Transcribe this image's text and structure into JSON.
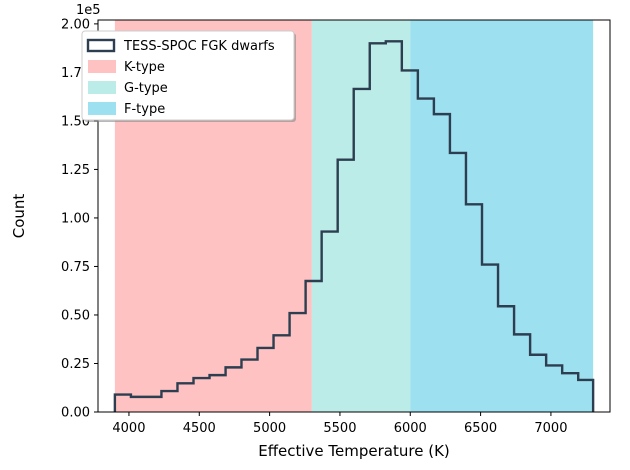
{
  "chart_data": {
    "type": "histogram",
    "title": "",
    "xlabel": "Effective Temperature (K)",
    "ylabel": "Count",
    "y_offset_label": "1e5",
    "xlim": [
      3780,
      7420
    ],
    "ylim": [
      0,
      2.02
    ],
    "y_scale": 100000,
    "xticks": [
      4000,
      4500,
      5000,
      5500,
      6000,
      6500,
      7000
    ],
    "yticks": [
      0.0,
      0.25,
      0.5,
      0.75,
      1.0,
      1.25,
      1.5,
      1.75,
      2.0
    ],
    "xtick_labels": [
      "4000",
      "4500",
      "5000",
      "5500",
      "6000",
      "6500",
      "7000"
    ],
    "ytick_labels": [
      "0.00",
      "0.25",
      "0.50",
      "0.75",
      "1.00",
      "1.25",
      "1.50",
      "1.75",
      "2.00"
    ],
    "regions": [
      {
        "name": "K-type",
        "x0": 3900,
        "x1": 5300,
        "color": "#ff9999",
        "opacity": 0.6
      },
      {
        "name": "G-type",
        "x0": 5300,
        "x1": 6000,
        "color": "#8fdfd8",
        "opacity": 0.6
      },
      {
        "name": "F-type",
        "x0": 6000,
        "x1": 7300,
        "color": "#5ccbe6",
        "opacity": 0.6
      }
    ],
    "series": [
      {
        "name": "TESS-SPOC FGK dwarfs",
        "color": "#2c3e50",
        "bin_edges": [
          3900,
          4014,
          4231,
          4345,
          4459,
          4573,
          4687,
          4800,
          4914,
          5028,
          5142,
          5256,
          5370,
          5484,
          5598,
          5712,
          5826,
          5940,
          6054,
          6168,
          6282,
          6396,
          6510,
          6624,
          6738,
          6852,
          6966,
          7080,
          7194,
          7300
        ],
        "values": [
          0.09,
          0.078,
          0.108,
          0.148,
          0.175,
          0.19,
          0.23,
          0.27,
          0.33,
          0.395,
          0.51,
          0.675,
          0.93,
          1.3,
          1.665,
          1.9,
          1.91,
          1.76,
          1.615,
          1.535,
          1.335,
          1.07,
          0.76,
          0.545,
          0.4,
          0.295,
          0.24,
          0.2,
          0.165
        ]
      }
    ],
    "legend": {
      "placement": "top-left",
      "entries": [
        {
          "label": "TESS-SPOC FGK dwarfs",
          "style": "outline",
          "color": "#2c3e50"
        },
        {
          "label": "K-type",
          "style": "fill",
          "color": "#ff9999"
        },
        {
          "label": "G-type",
          "style": "fill",
          "color": "#8fdfd8"
        },
        {
          "label": "F-type",
          "style": "fill",
          "color": "#5ccbe6"
        }
      ]
    }
  }
}
